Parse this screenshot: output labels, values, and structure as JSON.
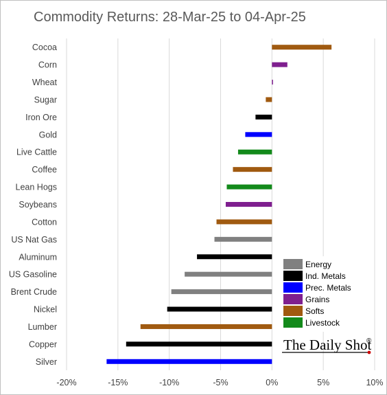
{
  "chart_data": {
    "type": "bar",
    "orientation": "horizontal",
    "title": "Commodity Returns: 28-Mar-25 to 04-Apr-25",
    "xlabel": "",
    "ylabel": "",
    "x_unit": "%",
    "xlim": [
      -20,
      10
    ],
    "x_ticks": [
      -20,
      -15,
      -10,
      -5,
      0,
      5,
      10
    ],
    "x_tick_labels": [
      "-20%",
      "-15%",
      "-10%",
      "-5%",
      "0%",
      "5%",
      "10%"
    ],
    "grid": "vertical gridlines",
    "legend_position": "bottom-right, inside plot",
    "categories": [
      "Cocoa",
      "Corn",
      "Wheat",
      "Sugar",
      "Iron Ore",
      "Gold",
      "Live Cattle",
      "Coffee",
      "Lean Hogs",
      "Soybeans",
      "Cotton",
      "US Nat Gas",
      "Aluminum",
      "US Gasoline",
      "Brent Crude",
      "Nickel",
      "Lumber",
      "Copper",
      "Silver"
    ],
    "values": [
      5.8,
      1.5,
      0.1,
      -0.6,
      -1.6,
      -2.6,
      -3.3,
      -3.8,
      -4.4,
      -4.5,
      -5.4,
      -5.6,
      -7.3,
      -8.5,
      -9.8,
      -10.2,
      -12.8,
      -14.2,
      -16.1
    ],
    "groups": [
      "Softs",
      "Grains",
      "Grains",
      "Softs",
      "Ind. Metals",
      "Prec. Metals",
      "Livestock",
      "Softs",
      "Livestock",
      "Grains",
      "Softs",
      "Energy",
      "Ind. Metals",
      "Energy",
      "Energy",
      "Ind. Metals",
      "Softs",
      "Ind. Metals",
      "Prec. Metals"
    ],
    "legend": [
      {
        "name": "Energy",
        "color": "#808080"
      },
      {
        "name": "Ind. Metals",
        "color": "#000000"
      },
      {
        "name": "Prec. Metals",
        "color": "#0000ff"
      },
      {
        "name": "Grains",
        "color": "#7f1f8f"
      },
      {
        "name": "Softs",
        "color": "#a05a10"
      },
      {
        "name": "Livestock",
        "color": "#138a1b"
      }
    ]
  },
  "branding": {
    "logo_text": "The Daily Shot",
    "logo_mark": "®"
  }
}
